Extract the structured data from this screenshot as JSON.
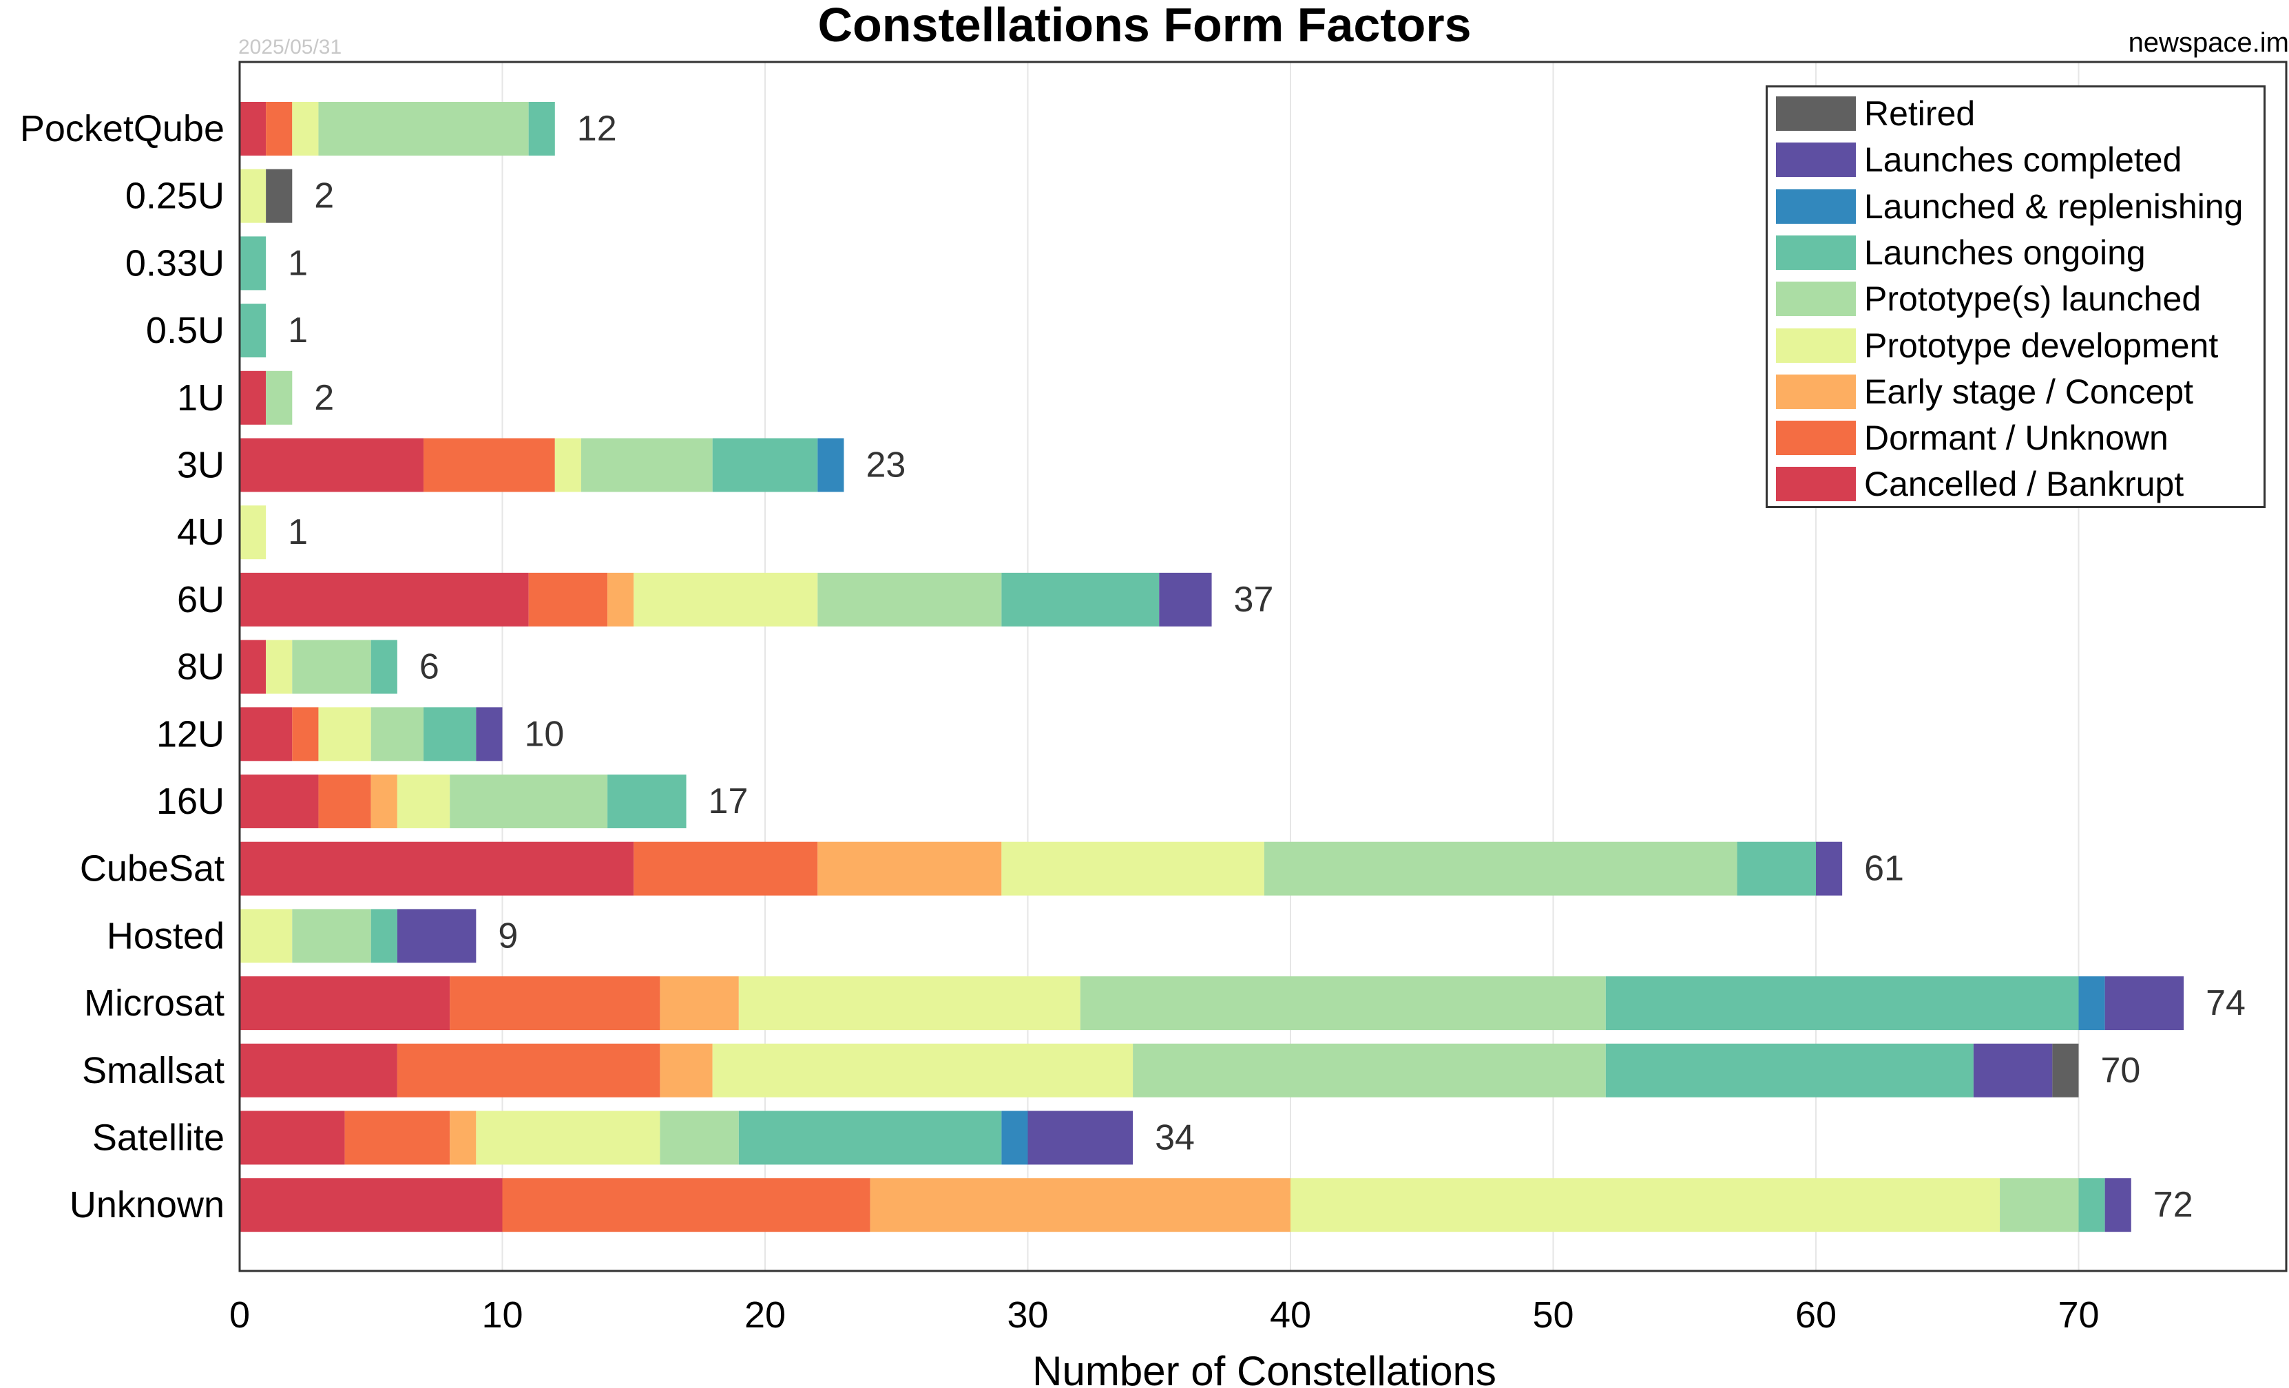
{
  "header": {
    "title": "Constellations Form Factors",
    "date": "2025/05/31",
    "source": "newspace.im"
  },
  "chart_data": {
    "type": "bar",
    "orientation": "horizontal",
    "stacked": true,
    "title": "Constellations Form Factors",
    "xlabel": "Number of Constellations",
    "ylabel": "",
    "xlim": [
      0,
      78
    ],
    "xticks": [
      0,
      10,
      20,
      30,
      40,
      50,
      60,
      70
    ],
    "grid": "x",
    "legend_position": "top-right",
    "categories": [
      "PocketQube",
      "0.25U",
      "0.33U",
      "0.5U",
      "1U",
      "3U",
      "4U",
      "6U",
      "8U",
      "12U",
      "16U",
      "CubeSat",
      "Hosted",
      "Microsat",
      "Smallsat",
      "Satellite",
      "Unknown"
    ],
    "totals": [
      12,
      2,
      1,
      1,
      2,
      23,
      1,
      37,
      6,
      10,
      17,
      61,
      9,
      74,
      70,
      34,
      72
    ],
    "series": [
      {
        "name": "Cancelled / Bankrupt",
        "color": "#d63e50",
        "values": [
          1,
          0,
          0,
          0,
          1,
          7,
          0,
          11,
          1,
          2,
          3,
          15,
          0,
          8,
          6,
          4,
          10
        ]
      },
      {
        "name": "Dormant / Unknown",
        "color": "#f46d43",
        "values": [
          1,
          0,
          0,
          0,
          0,
          5,
          0,
          3,
          0,
          1,
          2,
          7,
          0,
          8,
          10,
          4,
          14
        ]
      },
      {
        "name": "Early stage / Concept",
        "color": "#fdae61",
        "values": [
          0,
          0,
          0,
          0,
          0,
          0,
          0,
          1,
          0,
          0,
          1,
          7,
          0,
          3,
          2,
          1,
          16
        ]
      },
      {
        "name": "Prototype development",
        "color": "#e6f598",
        "values": [
          1,
          1,
          0,
          0,
          0,
          1,
          1,
          7,
          1,
          2,
          2,
          10,
          2,
          13,
          16,
          7,
          27
        ]
      },
      {
        "name": "Prototype(s) launched",
        "color": "#abdda4",
        "values": [
          8,
          0,
          0,
          0,
          1,
          5,
          0,
          7,
          3,
          2,
          6,
          18,
          3,
          20,
          18,
          3,
          3
        ]
      },
      {
        "name": "Launches ongoing",
        "color": "#66c2a5",
        "values": [
          1,
          0,
          1,
          1,
          0,
          4,
          0,
          6,
          1,
          2,
          3,
          3,
          1,
          18,
          14,
          10,
          1
        ]
      },
      {
        "name": "Launched & replenishing",
        "color": "#3288bd",
        "values": [
          0,
          0,
          0,
          0,
          0,
          1,
          0,
          0,
          0,
          0,
          0,
          0,
          0,
          1,
          0,
          1,
          0
        ]
      },
      {
        "name": "Launches completed",
        "color": "#5e4fa2",
        "values": [
          0,
          0,
          0,
          0,
          0,
          0,
          0,
          2,
          0,
          1,
          0,
          1,
          3,
          3,
          3,
          4,
          1
        ]
      },
      {
        "name": "Retired",
        "color": "#606060",
        "values": [
          0,
          1,
          0,
          0,
          0,
          0,
          0,
          0,
          0,
          0,
          0,
          0,
          0,
          0,
          1,
          0,
          0
        ]
      }
    ]
  }
}
